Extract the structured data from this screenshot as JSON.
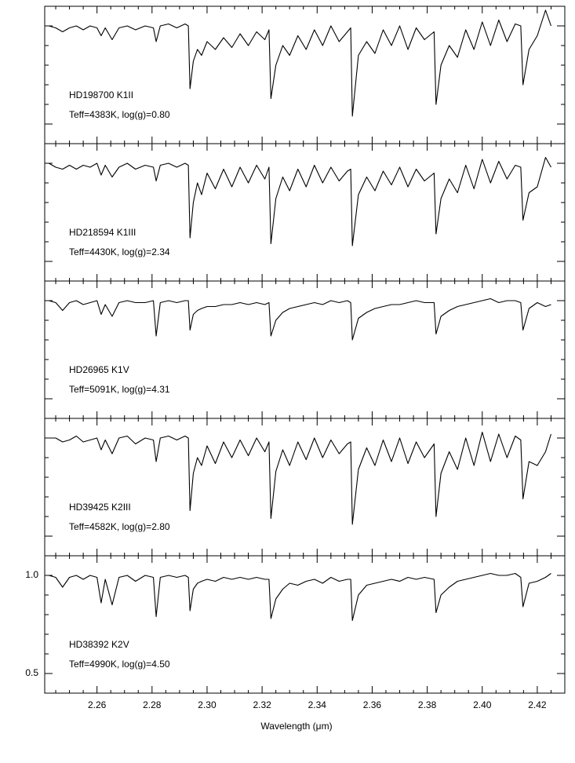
{
  "chart_data": [
    {
      "type": "line",
      "color": "#000000",
      "annotations": [
        "HD198700 K1II",
        "Teff=4383K, log(g)=0.80"
      ],
      "xlim": [
        2.241,
        2.43
      ],
      "ylim": [
        0.4,
        1.1
      ],
      "x": [
        2.2425,
        2.245,
        2.2475,
        2.25,
        2.2525,
        2.255,
        2.2575,
        2.26,
        2.2615,
        2.263,
        2.2655,
        2.268,
        2.271,
        2.274,
        2.2775,
        2.2805,
        2.2815,
        2.283,
        2.286,
        2.289,
        2.292,
        2.2932,
        2.2938,
        2.295,
        2.2965,
        2.298,
        2.3,
        2.303,
        2.306,
        2.309,
        2.312,
        2.315,
        2.318,
        2.321,
        2.3225,
        2.3232,
        2.325,
        2.3275,
        2.33,
        2.333,
        2.336,
        2.339,
        2.342,
        2.345,
        2.348,
        2.351,
        2.3522,
        2.3528,
        2.355,
        2.358,
        2.361,
        2.364,
        2.367,
        2.37,
        2.373,
        2.376,
        2.379,
        2.3825,
        2.3832,
        2.385,
        2.388,
        2.391,
        2.394,
        2.397,
        2.4,
        2.403,
        2.406,
        2.409,
        2.412,
        2.414,
        2.4148,
        2.417,
        2.42,
        2.423,
        2.425
      ],
      "values": [
        1.0,
        0.99,
        0.97,
        0.99,
        1.0,
        0.98,
        1.0,
        0.99,
        0.95,
        0.99,
        0.93,
        0.99,
        1.0,
        0.98,
        1.0,
        0.99,
        0.92,
        1.0,
        1.01,
        0.99,
        1.01,
        1.0,
        0.68,
        0.82,
        0.88,
        0.85,
        0.92,
        0.88,
        0.94,
        0.89,
        0.96,
        0.9,
        0.97,
        0.93,
        0.98,
        0.63,
        0.8,
        0.9,
        0.85,
        0.95,
        0.88,
        0.98,
        0.9,
        1.0,
        0.92,
        0.97,
        0.99,
        0.54,
        0.85,
        0.92,
        0.86,
        0.98,
        0.9,
        1.0,
        0.88,
        0.99,
        0.93,
        0.97,
        0.6,
        0.8,
        0.9,
        0.84,
        0.98,
        0.88,
        1.02,
        0.9,
        1.03,
        0.92,
        1.01,
        1.0,
        0.7,
        0.88,
        0.95,
        1.08,
        1.0
      ]
    },
    {
      "type": "line",
      "color": "#000000",
      "annotations": [
        "HD218594 K1III",
        "Teff=4430K, log(g)=2.34"
      ],
      "xlim": [
        2.241,
        2.43
      ],
      "ylim": [
        0.4,
        1.1
      ],
      "x": [
        2.2425,
        2.245,
        2.2475,
        2.25,
        2.2525,
        2.255,
        2.2575,
        2.26,
        2.2615,
        2.263,
        2.2655,
        2.268,
        2.271,
        2.274,
        2.2775,
        2.2805,
        2.2815,
        2.283,
        2.286,
        2.289,
        2.292,
        2.2932,
        2.2938,
        2.295,
        2.2965,
        2.298,
        2.3,
        2.303,
        2.306,
        2.309,
        2.312,
        2.315,
        2.318,
        2.321,
        2.3225,
        2.3232,
        2.325,
        2.3275,
        2.33,
        2.333,
        2.336,
        2.339,
        2.342,
        2.345,
        2.348,
        2.351,
        2.3522,
        2.3528,
        2.355,
        2.358,
        2.361,
        2.364,
        2.367,
        2.37,
        2.373,
        2.376,
        2.379,
        2.3825,
        2.3832,
        2.385,
        2.388,
        2.391,
        2.394,
        2.397,
        2.4,
        2.403,
        2.406,
        2.409,
        2.412,
        2.414,
        2.4148,
        2.417,
        2.42,
        2.423,
        2.425
      ],
      "values": [
        1.0,
        0.98,
        0.97,
        0.99,
        0.97,
        0.99,
        0.98,
        1.0,
        0.94,
        0.99,
        0.93,
        0.98,
        1.0,
        0.97,
        0.99,
        0.98,
        0.91,
        0.99,
        1.0,
        0.98,
        1.0,
        0.99,
        0.62,
        0.8,
        0.9,
        0.84,
        0.95,
        0.87,
        0.97,
        0.88,
        0.98,
        0.9,
        0.99,
        0.92,
        0.98,
        0.59,
        0.82,
        0.93,
        0.86,
        0.97,
        0.88,
        0.99,
        0.9,
        0.98,
        0.91,
        0.96,
        0.97,
        0.58,
        0.84,
        0.93,
        0.86,
        0.96,
        0.89,
        0.98,
        0.88,
        0.97,
        0.91,
        0.95,
        0.64,
        0.82,
        0.92,
        0.85,
        0.99,
        0.87,
        1.02,
        0.9,
        1.01,
        0.92,
        0.99,
        0.98,
        0.71,
        0.85,
        0.88,
        1.03,
        0.98
      ]
    },
    {
      "type": "line",
      "color": "#000000",
      "annotations": [
        "HD26965 K1V",
        "Teff=5091K, log(g)=4.31"
      ],
      "xlim": [
        2.241,
        2.43
      ],
      "ylim": [
        0.4,
        1.1
      ],
      "x": [
        2.2425,
        2.245,
        2.2475,
        2.25,
        2.2525,
        2.255,
        2.2575,
        2.26,
        2.2615,
        2.263,
        2.2655,
        2.268,
        2.271,
        2.274,
        2.2775,
        2.2805,
        2.2815,
        2.283,
        2.286,
        2.289,
        2.292,
        2.2932,
        2.2938,
        2.295,
        2.2965,
        2.298,
        2.3,
        2.303,
        2.306,
        2.309,
        2.312,
        2.315,
        2.318,
        2.321,
        2.3225,
        2.3232,
        2.325,
        2.3275,
        2.33,
        2.333,
        2.336,
        2.339,
        2.342,
        2.345,
        2.348,
        2.351,
        2.3522,
        2.3528,
        2.355,
        2.358,
        2.361,
        2.364,
        2.367,
        2.37,
        2.373,
        2.376,
        2.379,
        2.3825,
        2.3832,
        2.385,
        2.388,
        2.391,
        2.394,
        2.397,
        2.4,
        2.403,
        2.406,
        2.409,
        2.412,
        2.414,
        2.4148,
        2.417,
        2.42,
        2.423,
        2.425
      ],
      "values": [
        1.0,
        0.99,
        0.95,
        0.99,
        1.0,
        0.98,
        0.99,
        1.0,
        0.93,
        0.98,
        0.92,
        0.99,
        1.0,
        0.99,
        0.99,
        1.0,
        0.82,
        0.99,
        1.0,
        0.99,
        1.0,
        1.0,
        0.85,
        0.93,
        0.95,
        0.96,
        0.97,
        0.97,
        0.98,
        0.98,
        0.99,
        0.98,
        0.99,
        0.98,
        0.99,
        0.82,
        0.9,
        0.94,
        0.96,
        0.97,
        0.98,
        0.99,
        0.98,
        1.0,
        0.99,
        1.0,
        0.99,
        0.8,
        0.91,
        0.94,
        0.96,
        0.97,
        0.98,
        0.98,
        0.99,
        1.0,
        0.99,
        0.99,
        0.83,
        0.92,
        0.95,
        0.97,
        0.98,
        0.99,
        1.0,
        1.01,
        0.99,
        1.0,
        1.0,
        0.99,
        0.85,
        0.96,
        0.99,
        0.97,
        0.98
      ]
    },
    {
      "type": "line",
      "color": "#000000",
      "annotations": [
        "HD39425 K2III",
        "Teff=4582K, log(g)=2.80"
      ],
      "xlim": [
        2.241,
        2.43
      ],
      "ylim": [
        0.4,
        1.1
      ],
      "x": [
        2.2425,
        2.245,
        2.2475,
        2.25,
        2.2525,
        2.255,
        2.2575,
        2.26,
        2.2615,
        2.263,
        2.2655,
        2.268,
        2.271,
        2.274,
        2.2775,
        2.2805,
        2.2815,
        2.283,
        2.286,
        2.289,
        2.292,
        2.2932,
        2.2938,
        2.295,
        2.2965,
        2.298,
        2.3,
        2.303,
        2.306,
        2.309,
        2.312,
        2.315,
        2.318,
        2.321,
        2.3225,
        2.3232,
        2.325,
        2.3275,
        2.33,
        2.333,
        2.336,
        2.339,
        2.342,
        2.345,
        2.348,
        2.351,
        2.3522,
        2.3528,
        2.355,
        2.358,
        2.361,
        2.364,
        2.367,
        2.37,
        2.373,
        2.376,
        2.379,
        2.3825,
        2.3832,
        2.385,
        2.388,
        2.391,
        2.394,
        2.397,
        2.4,
        2.403,
        2.406,
        2.409,
        2.412,
        2.414,
        2.4148,
        2.417,
        2.42,
        2.423,
        2.425
      ],
      "values": [
        1.0,
        1.0,
        0.98,
        0.99,
        1.01,
        0.98,
        0.99,
        1.0,
        0.94,
        0.99,
        0.92,
        1.0,
        1.01,
        0.97,
        1.0,
        0.99,
        0.88,
        1.0,
        1.01,
        0.99,
        1.01,
        1.0,
        0.63,
        0.82,
        0.9,
        0.86,
        0.96,
        0.87,
        0.98,
        0.9,
        0.99,
        0.91,
        1.0,
        0.93,
        0.98,
        0.59,
        0.83,
        0.94,
        0.86,
        0.98,
        0.89,
        1.0,
        0.9,
        0.99,
        0.92,
        0.97,
        0.98,
        0.56,
        0.84,
        0.95,
        0.86,
        0.99,
        0.88,
        1.0,
        0.87,
        0.98,
        0.9,
        0.97,
        0.6,
        0.82,
        0.93,
        0.84,
        1.0,
        0.86,
        1.03,
        0.88,
        1.02,
        0.9,
        1.01,
        0.99,
        0.69,
        0.88,
        0.86,
        0.93,
        1.02
      ]
    },
    {
      "type": "line",
      "color": "#000000",
      "annotations": [
        "HD38392 K2V",
        "Teff=4990K, log(g)=4.50"
      ],
      "xlim": [
        2.241,
        2.43
      ],
      "ylim": [
        0.4,
        1.1
      ],
      "xlabel": "Wavelength (μm)",
      "xticks": [
        2.26,
        2.28,
        {
          "value": 2.3,
          "label": "2.30"
        },
        2.32,
        2.34,
        2.36,
        2.38,
        {
          "value": 2.4,
          "label": "2.40"
        },
        2.42
      ],
      "xminorticks": [
        2.245,
        2.25,
        2.255,
        2.265,
        2.27,
        2.275,
        2.285,
        2.29,
        2.295,
        2.305,
        2.31,
        2.315,
        2.325,
        2.33,
        2.335,
        2.345,
        2.35,
        2.355,
        2.365,
        2.37,
        2.375,
        2.385,
        2.39,
        2.395,
        2.405,
        2.41,
        2.415,
        2.425
      ],
      "yticks": [
        0.5,
        {
          "value": 1,
          "label": "1.0"
        }
      ],
      "yminorticks": [
        0.6,
        0.7,
        0.8,
        0.9
      ],
      "x": [
        2.2425,
        2.245,
        2.2475,
        2.25,
        2.2525,
        2.255,
        2.2575,
        2.26,
        2.2615,
        2.263,
        2.2655,
        2.268,
        2.271,
        2.274,
        2.2775,
        2.2805,
        2.2815,
        2.283,
        2.286,
        2.289,
        2.292,
        2.2932,
        2.2938,
        2.295,
        2.2965,
        2.298,
        2.3,
        2.303,
        2.306,
        2.309,
        2.312,
        2.315,
        2.318,
        2.321,
        2.3225,
        2.3232,
        2.325,
        2.3275,
        2.33,
        2.333,
        2.336,
        2.339,
        2.342,
        2.345,
        2.348,
        2.351,
        2.3522,
        2.3528,
        2.355,
        2.358,
        2.361,
        2.364,
        2.367,
        2.37,
        2.373,
        2.376,
        2.379,
        2.3825,
        2.3832,
        2.385,
        2.388,
        2.391,
        2.394,
        2.397,
        2.4,
        2.403,
        2.406,
        2.409,
        2.412,
        2.414,
        2.4148,
        2.417,
        2.42,
        2.423,
        2.425
      ],
      "values": [
        1.0,
        0.99,
        0.94,
        0.99,
        1.0,
        0.98,
        1.0,
        0.99,
        0.86,
        0.98,
        0.85,
        0.99,
        1.0,
        0.97,
        1.0,
        0.99,
        0.79,
        0.99,
        1.0,
        0.99,
        1.0,
        0.99,
        0.82,
        0.93,
        0.96,
        0.97,
        0.98,
        0.97,
        0.99,
        0.98,
        0.99,
        0.98,
        0.99,
        0.98,
        0.98,
        0.78,
        0.88,
        0.93,
        0.96,
        0.95,
        0.97,
        0.98,
        0.96,
        0.99,
        0.97,
        0.98,
        0.98,
        0.77,
        0.9,
        0.95,
        0.96,
        0.97,
        0.98,
        0.97,
        0.99,
        0.98,
        0.99,
        0.98,
        0.81,
        0.9,
        0.94,
        0.97,
        0.98,
        0.99,
        1.0,
        1.01,
        1.0,
        1.0,
        1.01,
        0.99,
        0.84,
        0.96,
        0.97,
        0.99,
        1.01
      ]
    }
  ]
}
